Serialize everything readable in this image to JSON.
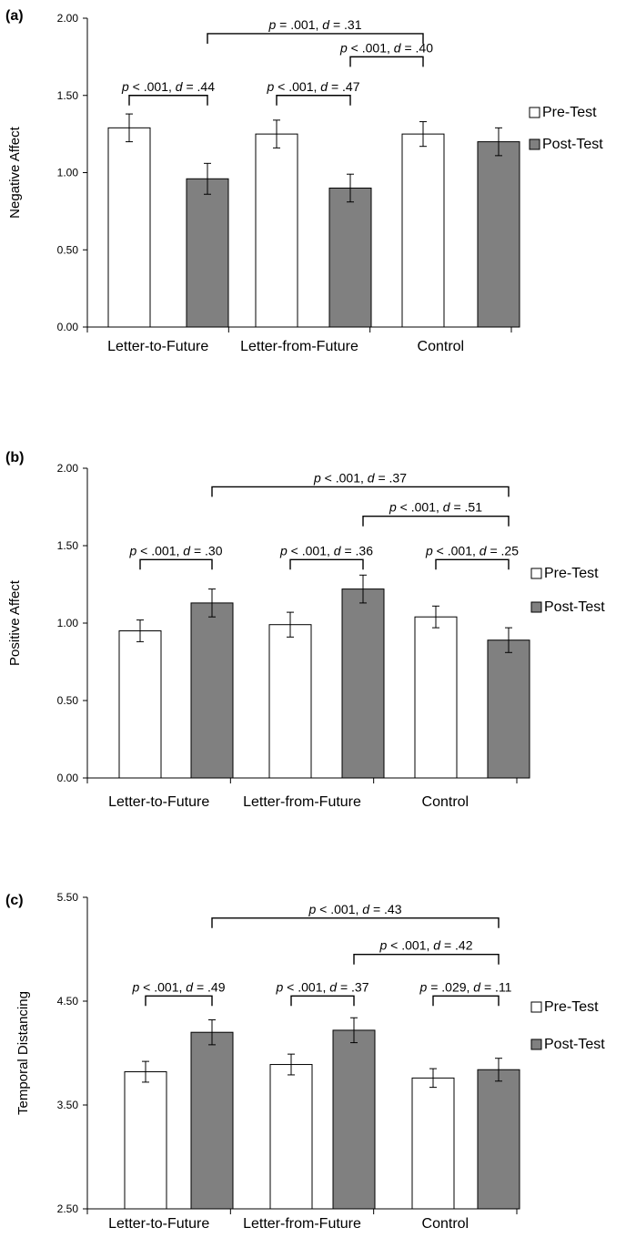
{
  "chart_data": [
    {
      "type": "bar",
      "panel_label": "(a)",
      "ylabel": "Negative Affect",
      "categories": [
        "Letter-to-Future",
        "Letter-from-Future",
        "Control"
      ],
      "ylim": [
        0,
        2
      ],
      "yticks": [
        "0.00",
        "0.50",
        "1.00",
        "1.50",
        "2.00"
      ],
      "grid": false,
      "legend_position": "right",
      "series": [
        {
          "name": "Pre-Test",
          "values": [
            1.29,
            1.25,
            1.25
          ],
          "errors": [
            0.09,
            0.09,
            0.08
          ],
          "color": "#ffffff"
        },
        {
          "name": "Post-Test",
          "values": [
            0.96,
            0.9,
            1.2
          ],
          "errors": [
            0.1,
            0.09,
            0.09
          ],
          "color": "#808080"
        }
      ],
      "annotations": [
        {
          "text": "p < .001, d = .44",
          "from": [
            0,
            0
          ],
          "to": [
            0,
            1
          ],
          "level": 1.5
        },
        {
          "text": "p < .001, d = .47",
          "from": [
            1,
            0
          ],
          "to": [
            1,
            1
          ],
          "level": 1.5
        },
        {
          "text": "p = .001, d = .31",
          "from": [
            0,
            1
          ],
          "to": [
            2,
            0
          ],
          "level": 1.9
        },
        {
          "text": "p < .001, d = .40",
          "from": [
            1,
            1
          ],
          "to": [
            2,
            0
          ],
          "level": 1.75
        }
      ]
    },
    {
      "type": "bar",
      "panel_label": "(b)",
      "ylabel": "Positive Affect",
      "categories": [
        "Letter-to-Future",
        "Letter-from-Future",
        "Control"
      ],
      "ylim": [
        0,
        2
      ],
      "yticks": [
        "0.00",
        "0.50",
        "1.00",
        "1.50",
        "2.00"
      ],
      "grid": false,
      "legend_position": "right",
      "series": [
        {
          "name": "Pre-Test",
          "values": [
            0.95,
            0.99,
            1.04
          ],
          "errors": [
            0.07,
            0.08,
            0.07
          ],
          "color": "#ffffff"
        },
        {
          "name": "Post-Test",
          "values": [
            1.13,
            1.22,
            0.89
          ],
          "errors": [
            0.09,
            0.09,
            0.08
          ],
          "color": "#808080"
        }
      ],
      "annotations": [
        {
          "text": "p < .001, d = .30",
          "from": [
            0,
            0
          ],
          "to": [
            0,
            1
          ],
          "level": 1.41
        },
        {
          "text": "p < .001, d = .36",
          "from": [
            1,
            0
          ],
          "to": [
            1,
            1
          ],
          "level": 1.41
        },
        {
          "text": "p < .001, d = .25",
          "from": [
            2,
            0
          ],
          "to": [
            2,
            1
          ],
          "level": 1.41
        },
        {
          "text": "p < .001, d = .37",
          "from": [
            0,
            1
          ],
          "to": [
            2,
            1
          ],
          "level": 1.88
        },
        {
          "text": "p < .001, d = .51",
          "from": [
            1,
            1
          ],
          "to": [
            2,
            1
          ],
          "level": 1.69
        }
      ]
    },
    {
      "type": "bar",
      "panel_label": "(c)",
      "ylabel": "Temporal Distancing",
      "categories": [
        "Letter-to-Future",
        "Letter-from-Future",
        "Control"
      ],
      "ylim": [
        2.5,
        5.5
      ],
      "yticks": [
        "2.50",
        "3.50",
        "4.50",
        "5.50"
      ],
      "grid": false,
      "legend_position": "right",
      "series": [
        {
          "name": "Pre-Test",
          "values": [
            3.82,
            3.89,
            3.76
          ],
          "errors": [
            0.1,
            0.1,
            0.09
          ],
          "color": "#ffffff"
        },
        {
          "name": "Post-Test",
          "values": [
            4.2,
            4.22,
            3.84
          ],
          "errors": [
            0.12,
            0.12,
            0.11
          ],
          "color": "#808080"
        }
      ],
      "annotations": [
        {
          "text": "p < .001, d = .49",
          "from": [
            0,
            0
          ],
          "to": [
            0,
            1
          ],
          "level": 4.55
        },
        {
          "text": "p < .001, d = .37",
          "from": [
            1,
            0
          ],
          "to": [
            1,
            1
          ],
          "level": 4.55
        },
        {
          "text": "p = .029, d = .11",
          "from": [
            2,
            0
          ],
          "to": [
            2,
            1
          ],
          "level": 4.55
        },
        {
          "text": "p < .001, d = .43",
          "from": [
            0,
            1
          ],
          "to": [
            2,
            1
          ],
          "level": 5.3
        },
        {
          "text": "p < .001, d = .42",
          "from": [
            1,
            1
          ],
          "to": [
            2,
            1
          ],
          "level": 4.95
        }
      ]
    }
  ]
}
